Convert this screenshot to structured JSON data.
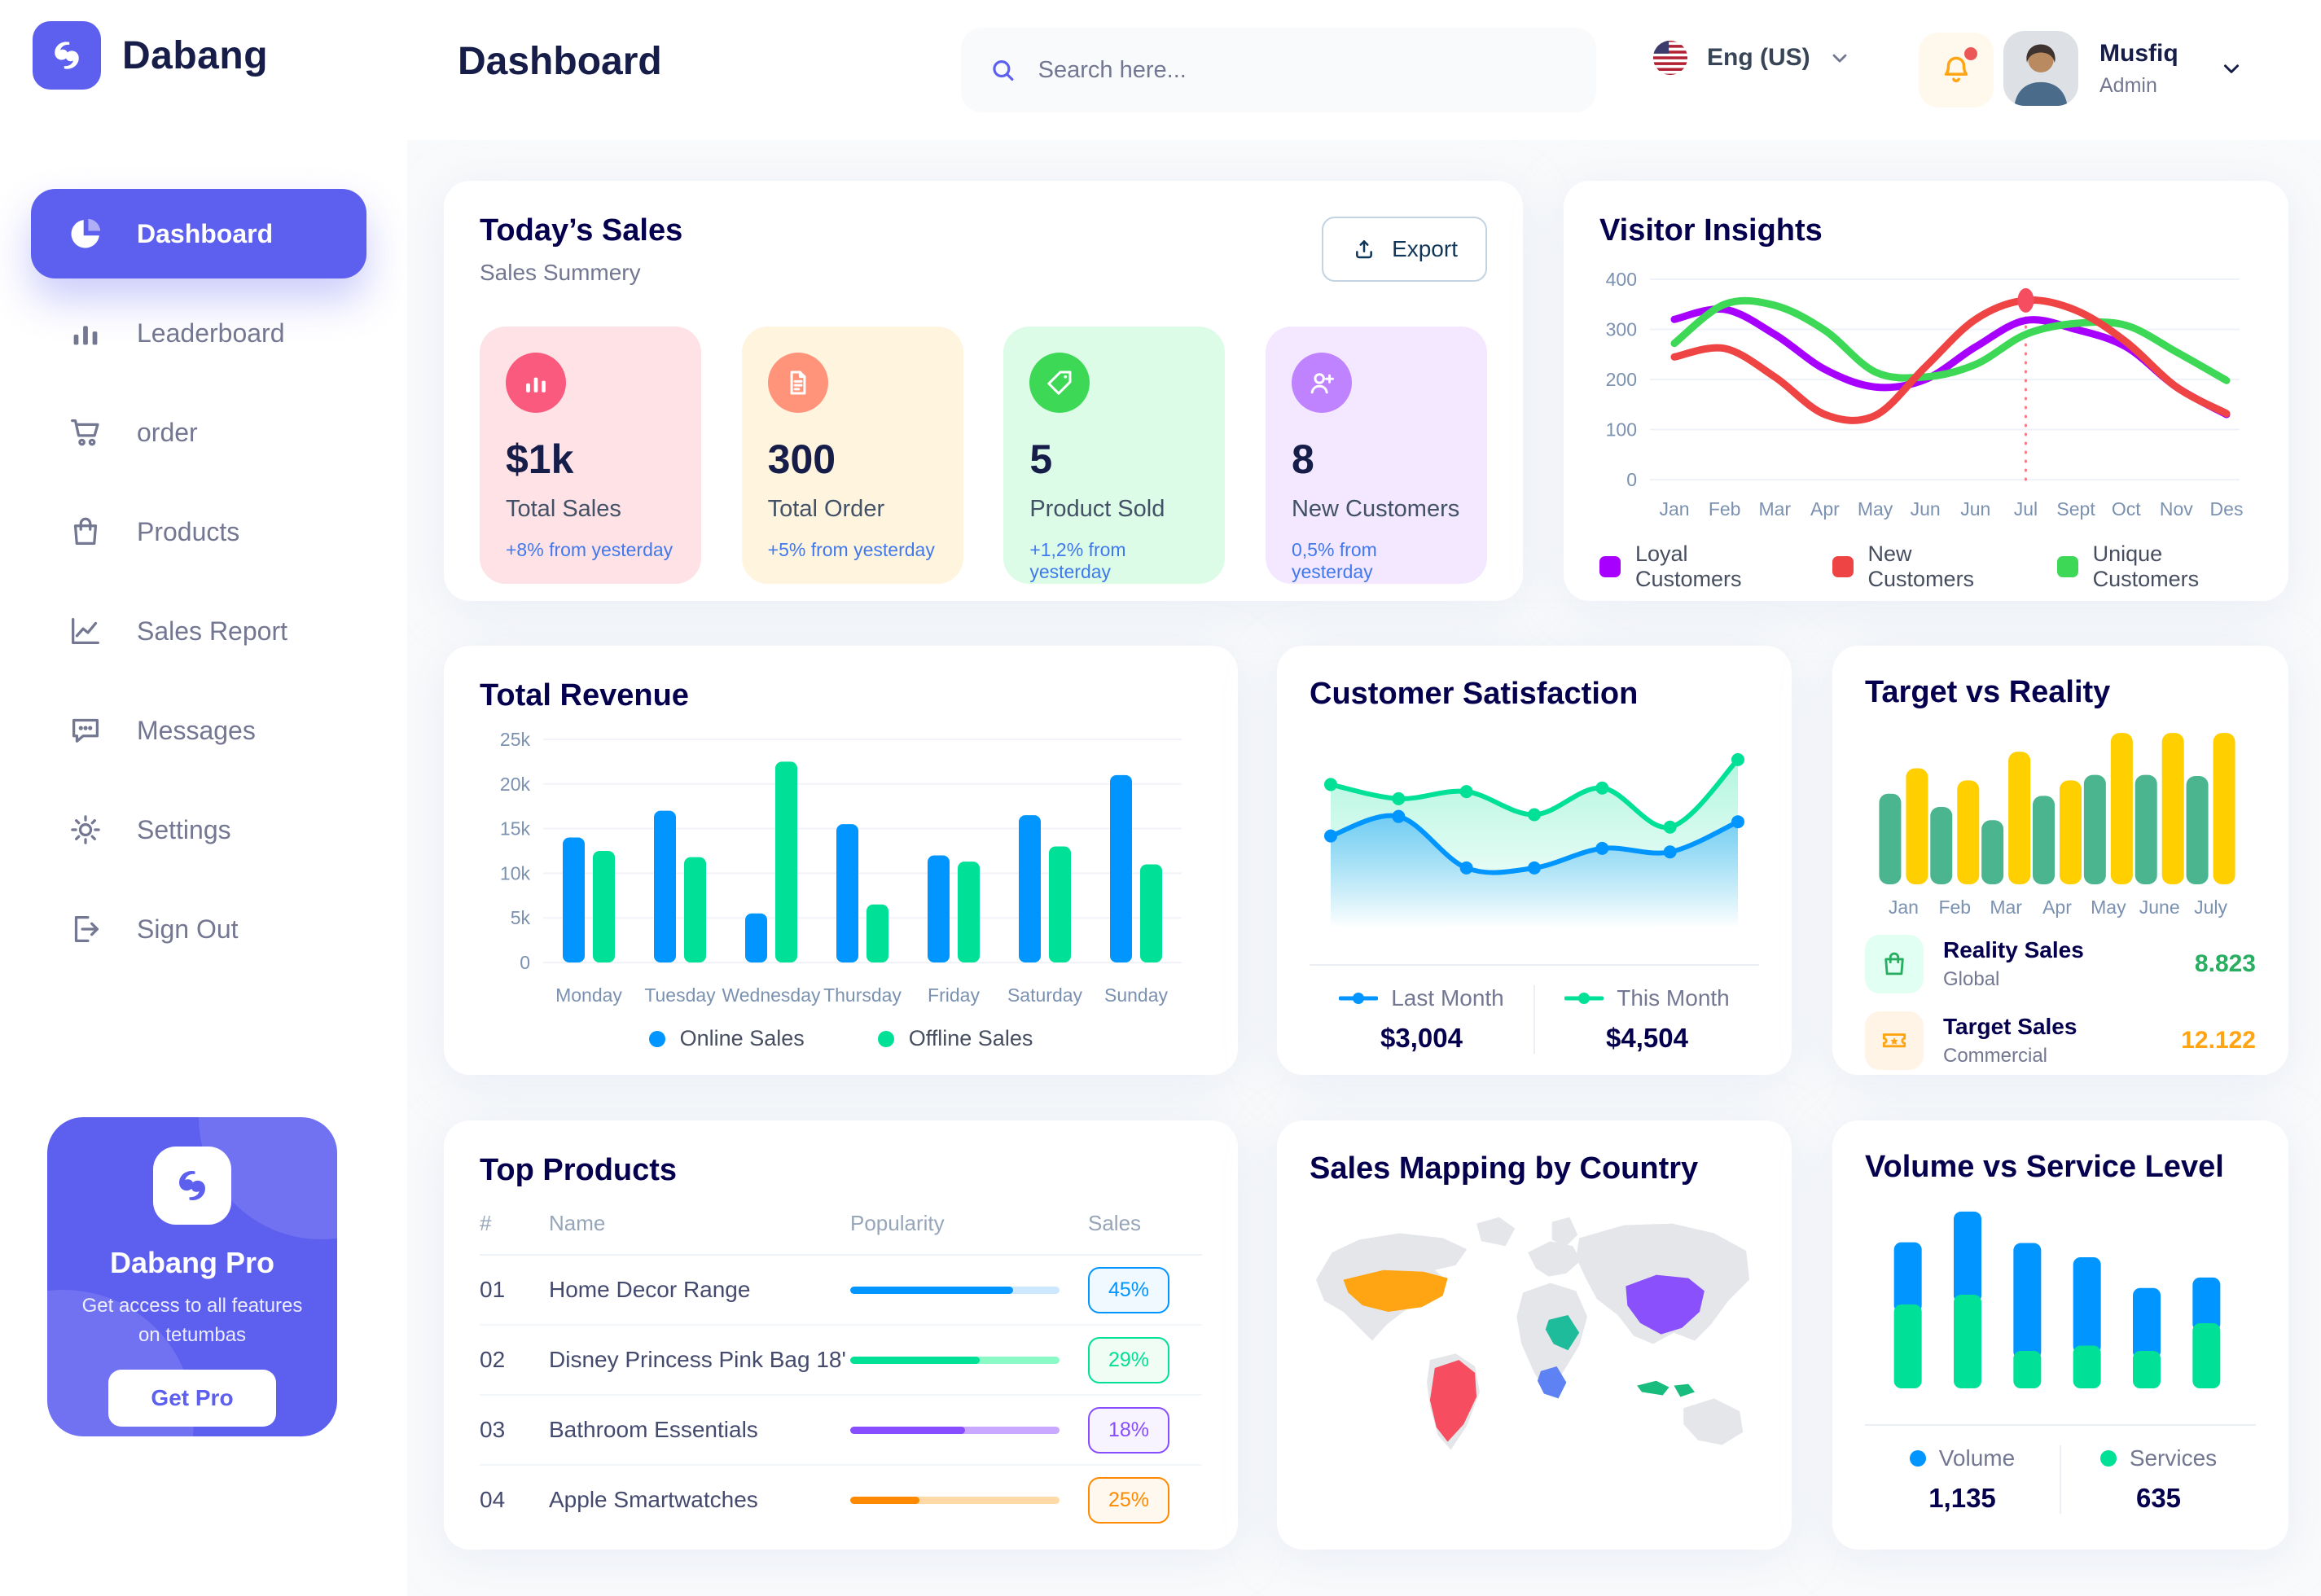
{
  "theme": {
    "primary": "#5D5FEF",
    "heading": "#151D48",
    "card_title": "#05004E",
    "muted": "#737791",
    "axis": "#7B91B0",
    "blue": "#0095FF",
    "green": "#00E096"
  },
  "brand": {
    "name": "Dabang"
  },
  "page": {
    "title": "Dashboard"
  },
  "header": {
    "search": {
      "placeholder": "Search here...",
      "icon": "search-icon"
    },
    "language": {
      "label": "Eng (US)",
      "flag": "us-flag-icon"
    },
    "notifications": {
      "icon": "bell-icon",
      "has_unread": true
    },
    "user": {
      "name": "Musfiq",
      "role": "Admin"
    }
  },
  "sidebar": {
    "items": [
      {
        "label": "Dashboard",
        "icon": "pie-chart-icon",
        "active": true
      },
      {
        "label": "Leaderboard",
        "icon": "bar-chart-icon",
        "active": false
      },
      {
        "label": "order",
        "icon": "cart-icon",
        "active": false
      },
      {
        "label": "Products",
        "icon": "bag-icon",
        "active": false
      },
      {
        "label": "Sales Report",
        "icon": "line-chart-icon",
        "active": false
      },
      {
        "label": "Messages",
        "icon": "message-icon",
        "active": false
      },
      {
        "label": "Settings",
        "icon": "gear-icon",
        "active": false
      },
      {
        "label": "Sign Out",
        "icon": "sign-out-icon",
        "active": false
      }
    ],
    "pro_card": {
      "title": "Dabang Pro",
      "description": "Get access to all features on tetumbas",
      "button": "Get Pro"
    }
  },
  "todays_sales": {
    "title": "Today’s Sales",
    "subtitle": "Sales Summery",
    "export_label": "Export",
    "delta_color": "#4079ED",
    "cards": [
      {
        "value": "$1k",
        "label": "Total Sales",
        "delta": "+8% from yesterday",
        "bg": "#FFE2E5",
        "icon_bg": "#FA5A7D",
        "icon": "stats-icon"
      },
      {
        "value": "300",
        "label": "Total Order",
        "delta": "+5% from yesterday",
        "bg": "#FFF4DE",
        "icon_bg": "#FF947A",
        "icon": "order-file-icon"
      },
      {
        "value": "5",
        "label": "Product Sold",
        "delta": "+1,2% from yesterday",
        "bg": "#DCFCE7",
        "icon_bg": "#3CD856",
        "icon": "tag-icon"
      },
      {
        "value": "8",
        "label": "New Customers",
        "delta": "0,5% from yesterday",
        "bg": "#F3E8FF",
        "icon_bg": "#BF83FF",
        "icon": "new-user-icon"
      }
    ]
  },
  "chart_data": [
    {
      "id": "visitor_insights",
      "type": "line",
      "title": "Visitor Insights",
      "x": [
        "Jan",
        "Feb",
        "Mar",
        "Apr",
        "May",
        "Jun",
        "Jun",
        "Jul",
        "Sept",
        "Oct",
        "Nov",
        "Des"
      ],
      "ylim": [
        0,
        400
      ],
      "yticks": [
        0,
        100,
        200,
        300,
        400
      ],
      "grid": true,
      "legend_position": "bottom",
      "series": [
        {
          "name": "Loyal Customers",
          "color": "#A700FF",
          "values": [
            320,
            340,
            290,
            220,
            185,
            200,
            265,
            318,
            300,
            265,
            185,
            130
          ]
        },
        {
          "name": "New Customers",
          "color": "#EF4444",
          "values": [
            245,
            262,
            205,
            130,
            128,
            225,
            320,
            358,
            338,
            275,
            185,
            132
          ]
        },
        {
          "name": "Unique Customers",
          "color": "#3CD856",
          "values": [
            272,
            350,
            348,
            298,
            215,
            205,
            230,
            290,
            312,
            308,
            255,
            198
          ]
        }
      ],
      "highlight": {
        "series": "New Customers",
        "x": "Jul",
        "index": 7,
        "value": 358,
        "color": "#F64E60"
      }
    },
    {
      "id": "total_revenue",
      "type": "bar",
      "title": "Total Revenue",
      "categories": [
        "Monday",
        "Tuesday",
        "Wednesday",
        "Thursday",
        "Friday",
        "Saturday",
        "Sunday"
      ],
      "ylim": [
        0,
        25000
      ],
      "yticks": [
        "0",
        "5k",
        "10k",
        "15k",
        "20k",
        "25k"
      ],
      "grid": true,
      "legend_position": "bottom",
      "series": [
        {
          "name": "Online Sales",
          "color": "#0095FF",
          "values": [
            14000,
            17000,
            5500,
            15500,
            12000,
            16500,
            21000
          ]
        },
        {
          "name": "Offline Sales",
          "color": "#00E096",
          "values": [
            12500,
            11800,
            22500,
            6500,
            11300,
            13000,
            11000
          ]
        }
      ]
    },
    {
      "id": "customer_satisfaction",
      "type": "area",
      "title": "Customer Satisfaction",
      "legend_position": "bottom",
      "series": [
        {
          "name": "Last Month",
          "color": "#0095FF",
          "total": "$3,004",
          "values": [
            52,
            63,
            34,
            34,
            45,
            43,
            60
          ]
        },
        {
          "name": "This Month",
          "color": "#00E096",
          "total": "$4,504",
          "values": [
            81,
            73,
            77,
            64,
            79,
            57,
            95
          ]
        }
      ]
    },
    {
      "id": "target_vs_reality",
      "type": "bar",
      "title": "Target vs Reality",
      "categories": [
        "Jan",
        "Feb",
        "Mar",
        "Apr",
        "May",
        "June",
        "July"
      ],
      "ylim": [
        0,
        14
      ],
      "series": [
        {
          "name": "Reality Sales",
          "color": "#4AB58E",
          "values": [
            8.2,
            7.0,
            5.8,
            8.0,
            9.9,
            9.9,
            9.8
          ]
        },
        {
          "name": "Target Sales",
          "color": "#FFCF00",
          "values": [
            10.5,
            9.4,
            12.0,
            9.4,
            13.7,
            13.7,
            13.7
          ]
        }
      ],
      "legend": [
        {
          "title": "Reality Sales",
          "subtitle": "Global",
          "value": "8.823",
          "value_color": "#27AE60",
          "icon_bg": "#E2FFF3",
          "icon": "bag-icon"
        },
        {
          "title": "Target Sales",
          "subtitle": "Commercial",
          "value": "12.122",
          "value_color": "#FFA412",
          "icon_bg": "#FFF4E5",
          "icon": "ticket-icon"
        }
      ]
    },
    {
      "id": "top_products",
      "type": "table",
      "title": "Top Products",
      "columns": [
        "#",
        "Name",
        "Popularity",
        "Sales"
      ],
      "rows": [
        {
          "num": "01",
          "name": "Home Decor Range",
          "popularity": 78,
          "sales": "45%",
          "color": "#0095FF",
          "track": "#CDE7FF",
          "badge_bg": "#F0F9FF"
        },
        {
          "num": "02",
          "name": "Disney Princess Pink Bag 18'",
          "popularity": 62,
          "sales": "29%",
          "color": "#00E096",
          "track": "#8CFAC7",
          "badge_bg": "#F0FDF4"
        },
        {
          "num": "03",
          "name": "Bathroom Essentials",
          "popularity": 55,
          "sales": "18%",
          "color": "#884DFF",
          "track": "#C9A9FF",
          "badge_bg": "#F8F4FF"
        },
        {
          "num": "04",
          "name": "Apple Smartwatches",
          "popularity": 33,
          "sales": "25%",
          "color": "#FF8900",
          "track": "#FFD9A6",
          "badge_bg": "#FFF8EF"
        }
      ]
    },
    {
      "id": "sales_mapping",
      "type": "map",
      "title": "Sales Mapping by Country",
      "countries": [
        {
          "name": "United States",
          "color": "#FFA412"
        },
        {
          "name": "Brazil",
          "color": "#F64E60"
        },
        {
          "name": "Saudi Arabia",
          "color": "#1FBC9C"
        },
        {
          "name": "DR Congo",
          "color": "#5E81F4"
        },
        {
          "name": "China",
          "color": "#8950FC"
        },
        {
          "name": "Indonesia",
          "color": "#18BD7E"
        }
      ]
    },
    {
      "id": "volume_vs_service",
      "type": "stacked-bar",
      "title": "Volume vs Service Level",
      "legend_position": "bottom",
      "series": [
        {
          "name": "Volume",
          "color": "#0095FF",
          "total": "1,135",
          "values": [
            83,
            111,
            144,
            118,
            84,
            61
          ]
        },
        {
          "name": "Services",
          "color": "#00E096",
          "total": "635",
          "values": [
            112,
            125,
            50,
            57,
            50,
            87
          ]
        }
      ]
    }
  ]
}
